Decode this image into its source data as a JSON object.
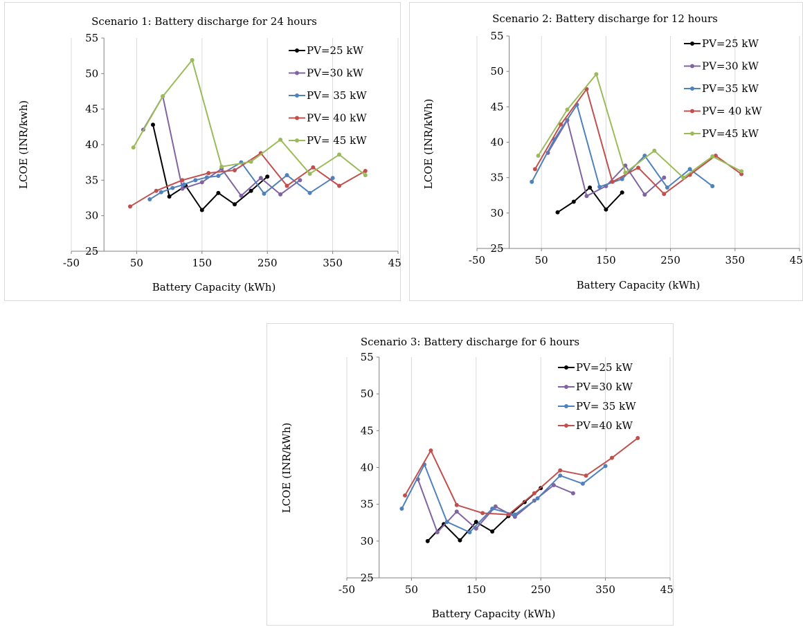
{
  "colors": {
    "black": "#000000",
    "purple": "#8064a2",
    "blue": "#4f81bd",
    "red": "#c0504d",
    "green": "#9bbb59",
    "grid": "#d9d9d9",
    "axis": "#808080"
  },
  "chart_data": [
    {
      "type": "line",
      "title": "Scenario 1: Battery discharge for 24 hours",
      "xlabel": "Battery Capacity (kWh)",
      "ylabel": "LCOE (INR/kwh)",
      "xlim": [
        -50,
        450
      ],
      "ylim": [
        25,
        55
      ],
      "xticks": [
        "-50",
        "50",
        "150",
        "250",
        "350",
        "450"
      ],
      "yticks": [
        "25",
        "30",
        "35",
        "40",
        "45",
        "50",
        "55"
      ],
      "grid": "vertical",
      "legend": "top-right",
      "series": [
        {
          "name": "PV=25 kW",
          "color": "#000000",
          "points": [
            [
              75,
              42.8
            ],
            [
              100,
              32.7
            ],
            [
              125,
              34.2
            ],
            [
              150,
              30.8
            ],
            [
              175,
              33.2
            ],
            [
              200,
              31.6
            ],
            [
              225,
              33.5
            ],
            [
              250,
              35.5
            ]
          ]
        },
        {
          "name": "PV=30 kW",
          "color": "#8064a2",
          "points": [
            [
              60,
              42.1
            ],
            [
              90,
              46.8
            ],
            [
              120,
              33.8
            ],
            [
              150,
              34.7
            ],
            [
              180,
              36.6
            ],
            [
              210,
              32.8
            ],
            [
              240,
              35.3
            ],
            [
              270,
              33.0
            ],
            [
              300,
              35.0
            ]
          ]
        },
        {
          "name": "PV= 35 kW",
          "color": "#4f81bd",
          "points": [
            [
              70,
              32.3
            ],
            [
              87.5,
              33.3
            ],
            [
              105,
              33.9
            ],
            [
              122.5,
              34.4
            ],
            [
              140,
              35.0
            ],
            [
              157.5,
              35.4
            ],
            [
              175,
              35.6
            ],
            [
              210,
              37.5
            ],
            [
              245,
              33.1
            ],
            [
              280,
              35.7
            ],
            [
              315,
              33.2
            ],
            [
              350,
              35.3
            ]
          ]
        },
        {
          "name": "PV= 40 kW",
          "color": "#c0504d",
          "points": [
            [
              40,
              31.3
            ],
            [
              80,
              33.5
            ],
            [
              120,
              35.0
            ],
            [
              160,
              36.0
            ],
            [
              200,
              36.4
            ],
            [
              240,
              38.8
            ],
            [
              280,
              34.2
            ],
            [
              320,
              36.8
            ],
            [
              360,
              34.2
            ],
            [
              400,
              36.3
            ]
          ]
        },
        {
          "name": "PV= 45 kW",
          "color": "#9bbb59",
          "points": [
            [
              45,
              39.6
            ],
            [
              90,
              46.8
            ],
            [
              135,
              51.9
            ],
            [
              180,
              36.9
            ],
            [
              225,
              37.6
            ],
            [
              270,
              40.7
            ],
            [
              315,
              35.9
            ],
            [
              360,
              38.6
            ],
            [
              400,
              35.7
            ]
          ]
        }
      ]
    },
    {
      "type": "line",
      "title": "Scenario 2: Battery discharge for 12 hours",
      "xlabel": "Battery Capacity (kWh)",
      "ylabel": "LCOE (INR/kWh)",
      "xlim": [
        -50,
        450
      ],
      "ylim": [
        25,
        55
      ],
      "xticks": [
        "-50",
        "50",
        "150",
        "250",
        "350",
        "450"
      ],
      "yticks": [
        "25",
        "30",
        "35",
        "40",
        "45",
        "50",
        "55"
      ],
      "grid": "vertical",
      "legend": "top-right",
      "series": [
        {
          "name": "PV=25 kW",
          "color": "#000000",
          "points": [
            [
              75,
              30.1
            ],
            [
              100,
              31.6
            ],
            [
              125,
              33.6
            ],
            [
              150,
              30.5
            ],
            [
              175,
              32.9
            ]
          ]
        },
        {
          "name": "PV=30 kW",
          "color": "#8064a2",
          "points": [
            [
              60,
              38.5
            ],
            [
              90,
              43.1
            ],
            [
              120,
              32.4
            ],
            [
              150,
              33.8
            ],
            [
              180,
              36.7
            ],
            [
              210,
              32.6
            ],
            [
              240,
              35.0
            ]
          ]
        },
        {
          "name": "PV=35 kW",
          "color": "#4f81bd",
          "points": [
            [
              35,
              34.4
            ],
            [
              70,
              40.4
            ],
            [
              105,
              45.3
            ],
            [
              140,
              33.7
            ],
            [
              175,
              34.8
            ],
            [
              210,
              38.1
            ],
            [
              245,
              33.6
            ],
            [
              280,
              36.2
            ],
            [
              315,
              33.8
            ]
          ]
        },
        {
          "name": "PV= 40 kW",
          "color": "#c0504d",
          "points": [
            [
              40,
              36.2
            ],
            [
              80,
              42.5
            ],
            [
              120,
              47.5
            ],
            [
              160,
              34.4
            ],
            [
              200,
              36.4
            ],
            [
              240,
              32.7
            ],
            [
              280,
              35.4
            ],
            [
              320,
              38.1
            ],
            [
              360,
              35.5
            ]
          ]
        },
        {
          "name": "PV=45 kW",
          "color": "#9bbb59",
          "points": [
            [
              45,
              38.1
            ],
            [
              90,
              44.6
            ],
            [
              135,
              49.6
            ],
            [
              180,
              35.7
            ],
            [
              225,
              38.8
            ],
            [
              270,
              35.0
            ],
            [
              315,
              38.0
            ],
            [
              360,
              35.9
            ]
          ]
        }
      ]
    },
    {
      "type": "line",
      "title": "Scenario 3: Battery discharge for 6 hours",
      "xlabel": "Battery Capacity (kWh)",
      "ylabel": "LCOE (INR/kWh)",
      "xlim": [
        -50,
        450
      ],
      "ylim": [
        25,
        55
      ],
      "xticks": [
        "-50",
        "50",
        "150",
        "250",
        "350",
        "450"
      ],
      "yticks": [
        "25",
        "30",
        "35",
        "40",
        "45",
        "50",
        "55"
      ],
      "grid": "vertical",
      "legend": "top-right",
      "series": [
        {
          "name": "PV=25 kW",
          "color": "#000000",
          "points": [
            [
              75,
              30.0
            ],
            [
              100,
              32.3
            ],
            [
              125,
              30.1
            ],
            [
              150,
              32.6
            ],
            [
              175,
              31.3
            ],
            [
              200,
              33.4
            ],
            [
              225,
              35.3
            ],
            [
              250,
              37.2
            ]
          ]
        },
        {
          "name": "PV=30 kW",
          "color": "#8064a2",
          "points": [
            [
              60,
              38.4
            ],
            [
              90,
              31.2
            ],
            [
              120,
              34.0
            ],
            [
              150,
              31.7
            ],
            [
              180,
              34.7
            ],
            [
              210,
              33.3
            ],
            [
              240,
              35.5
            ],
            [
              270,
              37.6
            ],
            [
              300,
              36.5
            ]
          ]
        },
        {
          "name": "PV= 35 kW",
          "color": "#4f81bd",
          "points": [
            [
              35,
              34.4
            ],
            [
              70,
              40.4
            ],
            [
              105,
              32.6
            ],
            [
              140,
              31.2
            ],
            [
              175,
              34.4
            ],
            [
              210,
              33.6
            ],
            [
              245,
              35.8
            ],
            [
              280,
              38.9
            ],
            [
              315,
              37.8
            ],
            [
              350,
              40.2
            ]
          ]
        },
        {
          "name": "PV=40 kW",
          "color": "#c0504d",
          "points": [
            [
              40,
              36.2
            ],
            [
              80,
              42.3
            ],
            [
              120,
              34.9
            ],
            [
              160,
              33.8
            ],
            [
              200,
              33.6
            ],
            [
              240,
              36.5
            ],
            [
              280,
              39.6
            ],
            [
              320,
              38.9
            ],
            [
              360,
              41.3
            ],
            [
              400,
              44.0
            ]
          ]
        }
      ]
    }
  ]
}
